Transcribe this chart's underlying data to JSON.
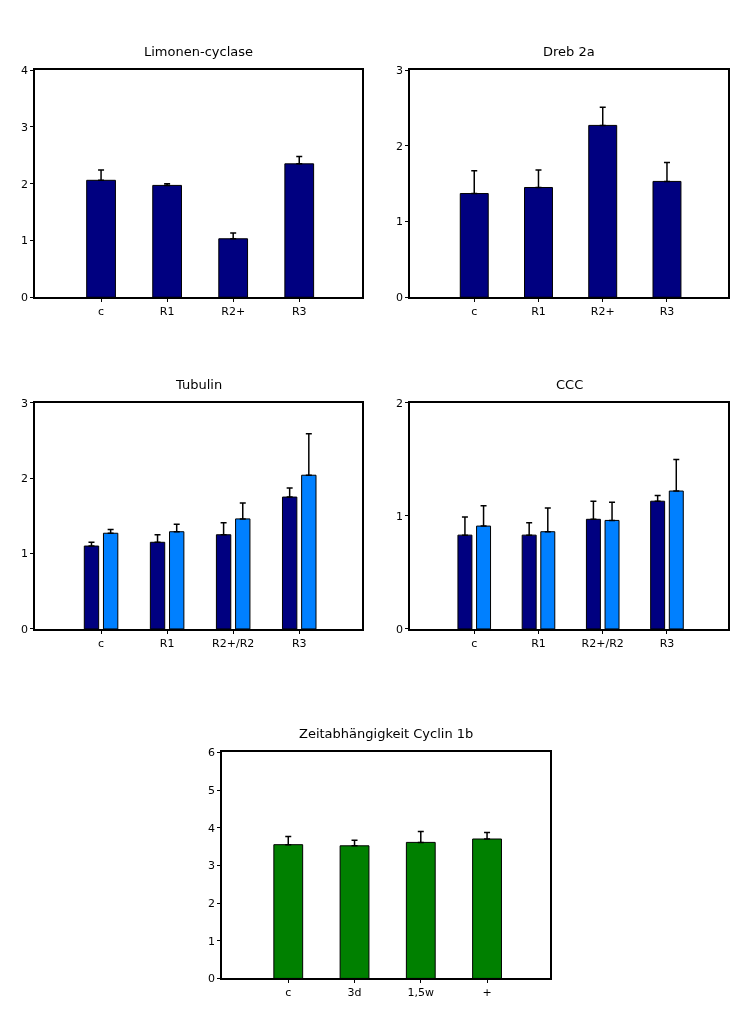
{
  "chart_data": [
    {
      "type": "bar",
      "title": "Limonen-cyclase",
      "categories": [
        "c",
        "R1",
        "R2+",
        "R3"
      ],
      "ylim": [
        0,
        4
      ],
      "yticks": [
        0,
        1,
        2,
        3,
        4
      ],
      "series": [
        {
          "color": "#000080",
          "values": [
            2.06,
            1.97,
            1.03,
            2.35
          ],
          "errors": [
            [
              2.06,
              2.24
            ],
            [
              1.97,
              2.0
            ],
            [
              1.03,
              1.13
            ],
            [
              2.35,
              2.48
            ]
          ]
        }
      ]
    },
    {
      "type": "bar",
      "title": "Dreb 2a",
      "categories": [
        "c",
        "R1",
        "R2+",
        "R3"
      ],
      "ylim": [
        0,
        3
      ],
      "yticks": [
        0,
        1,
        2,
        3
      ],
      "series": [
        {
          "color": "#000080",
          "values": [
            1.37,
            1.45,
            2.27,
            1.53
          ],
          "errors": [
            [
              1.37,
              1.67
            ],
            [
              1.45,
              1.68
            ],
            [
              2.27,
              2.51
            ],
            [
              1.53,
              1.78
            ]
          ]
        }
      ]
    },
    {
      "type": "bar",
      "title": "Tubulin",
      "categories": [
        "c",
        "R1",
        "R2+/R2",
        "R3"
      ],
      "ylim": [
        0,
        3
      ],
      "yticks": [
        0,
        1,
        2,
        3
      ],
      "series": [
        {
          "color": "#000080",
          "values": [
            1.1,
            1.15,
            1.25,
            1.75
          ],
          "errors": [
            [
              1.1,
              1.15
            ],
            [
              1.15,
              1.25
            ],
            [
              1.25,
              1.41
            ],
            [
              1.75,
              1.87
            ]
          ]
        },
        {
          "color": "#0080ff",
          "values": [
            1.27,
            1.29,
            1.46,
            2.04
          ],
          "errors": [
            [
              1.27,
              1.32
            ],
            [
              1.29,
              1.39
            ],
            [
              1.46,
              1.67
            ],
            [
              2.04,
              2.59
            ]
          ]
        }
      ]
    },
    {
      "type": "bar",
      "title": "CCC",
      "categories": [
        "c",
        "R1",
        "R2+/R2",
        "R3"
      ],
      "ylim": [
        0,
        2
      ],
      "yticks": [
        0,
        1,
        2
      ],
      "series": [
        {
          "color": "#000080",
          "values": [
            0.83,
            0.83,
            0.97,
            1.13
          ],
          "errors": [
            [
              0.83,
              0.99
            ],
            [
              0.83,
              0.94
            ],
            [
              0.97,
              1.13
            ],
            [
              1.13,
              1.18
            ]
          ]
        },
        {
          "color": "#0080ff",
          "values": [
            0.91,
            0.86,
            0.96,
            1.22
          ],
          "errors": [
            [
              0.91,
              1.09
            ],
            [
              0.86,
              1.07
            ],
            [
              0.96,
              1.12
            ],
            [
              1.22,
              1.5
            ]
          ]
        }
      ]
    },
    {
      "type": "bar",
      "title": "Zeitabhängigkeit Cyclin 1b",
      "categories": [
        "c",
        "3d",
        "1,5w",
        "+"
      ],
      "ylim": [
        0,
        6
      ],
      "yticks": [
        0,
        1,
        2,
        3,
        4,
        5,
        6
      ],
      "series": [
        {
          "color": "#008000",
          "values": [
            3.55,
            3.52,
            3.61,
            3.7
          ],
          "errors": [
            [
              3.55,
              3.77
            ],
            [
              3.52,
              3.67
            ],
            [
              3.61,
              3.9
            ],
            [
              3.7,
              3.87
            ]
          ]
        }
      ]
    }
  ]
}
